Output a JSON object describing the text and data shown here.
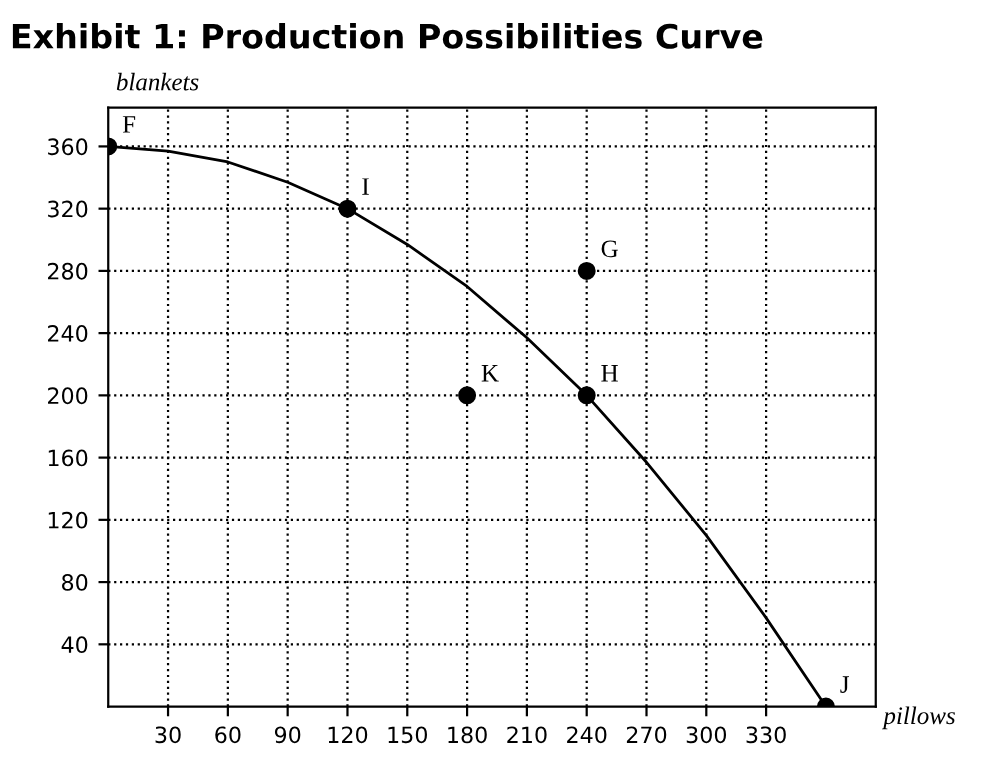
{
  "chart_data": {
    "type": "line",
    "title": "Exhibit 1: Production Possibilities Curve",
    "xlabel": "pillows",
    "ylabel": "blankets",
    "x": [
      0,
      30,
      60,
      90,
      120,
      150,
      180,
      210,
      240,
      270,
      300,
      330,
      360
    ],
    "series": [
      {
        "color": "#000000",
        "values": [
          360,
          357,
          350,
          337,
          320,
          297,
          270,
          237,
          200,
          157,
          110,
          57,
          0
        ]
      },
      {
        "type": "scatter",
        "color": "#000000",
        "x": [
          0,
          120,
          240,
          180,
          240,
          360
        ],
        "values": [
          360,
          320,
          280,
          200,
          200,
          0
        ],
        "value_labels": [
          "F",
          "I",
          "G",
          "K",
          "H",
          "J"
        ]
      }
    ],
    "xlim": [
      0,
      385
    ],
    "ylim": [
      0,
      385
    ],
    "xticks": [
      30,
      60,
      90,
      120,
      150,
      180,
      210,
      240,
      270,
      300,
      330
    ],
    "yticks": [
      40,
      80,
      120,
      160,
      200,
      240,
      280,
      320,
      360
    ],
    "grid": true,
    "line_style": "solid"
  }
}
